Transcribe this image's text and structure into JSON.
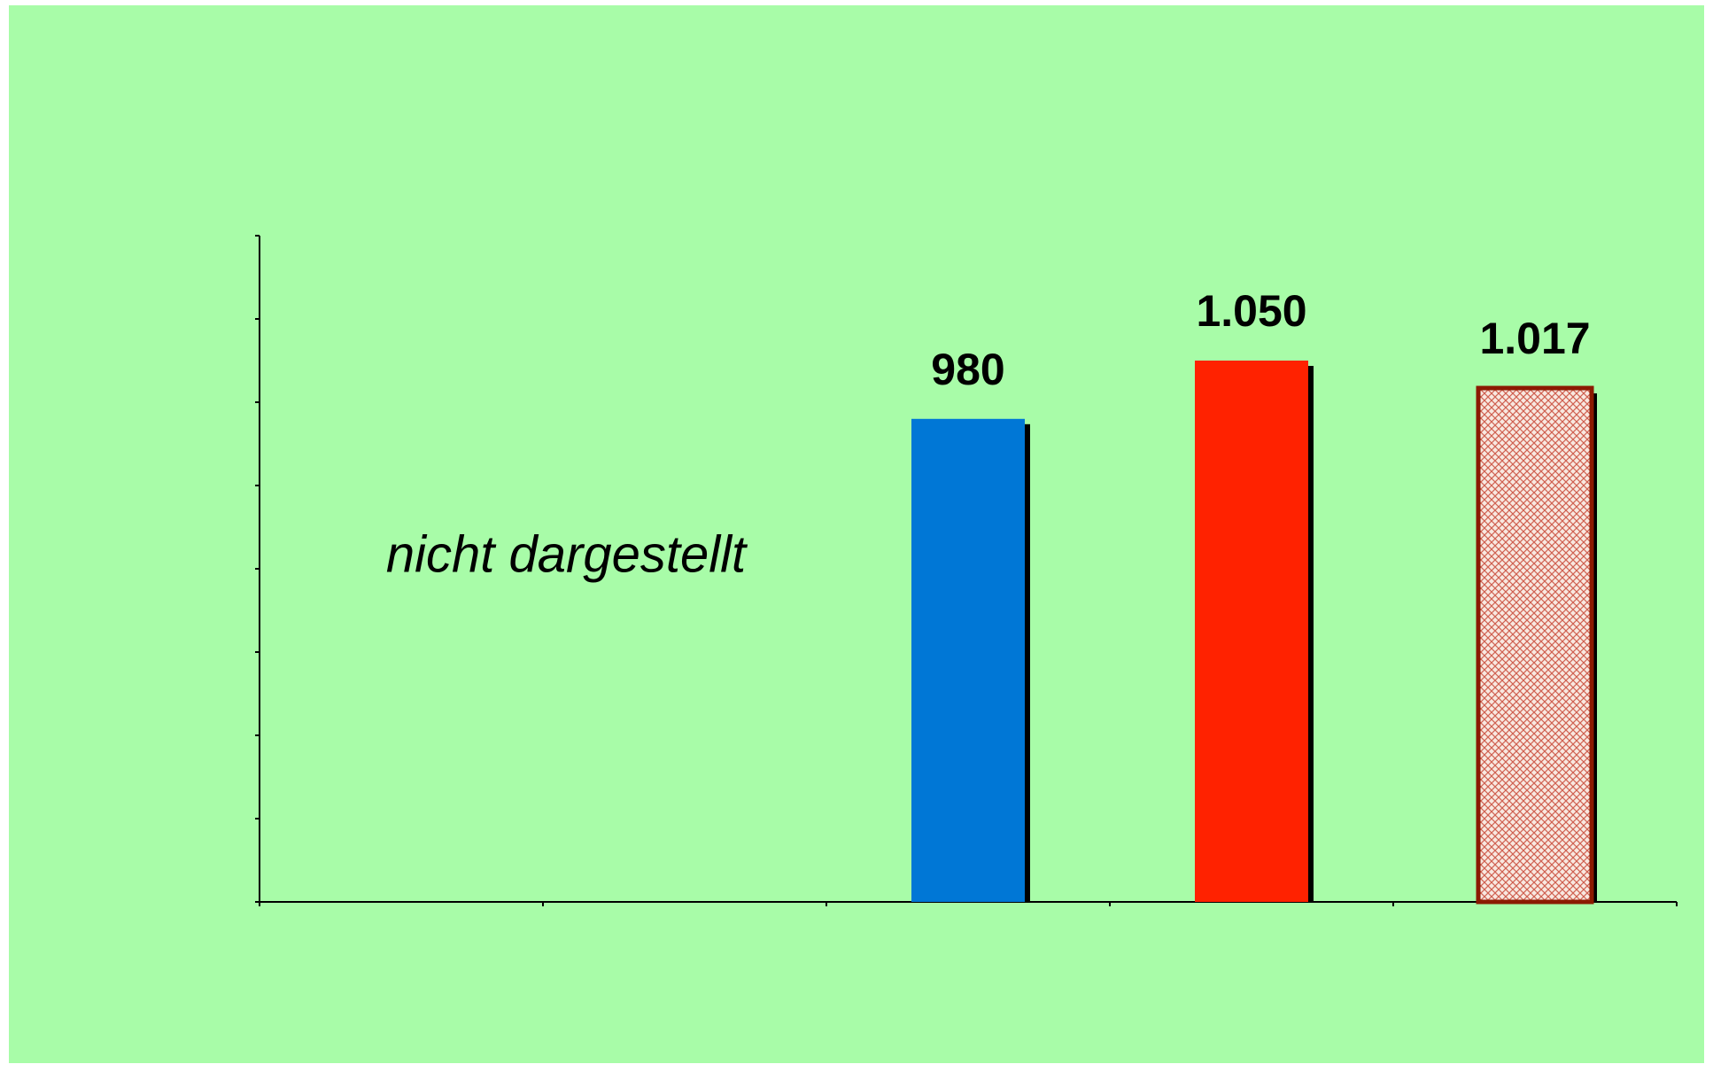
{
  "chart_data": {
    "type": "bar",
    "categories": [
      null,
      null,
      null,
      null,
      null
    ],
    "values": [
      null,
      null,
      980,
      1050,
      1017
    ],
    "value_labels": [
      null,
      null,
      "980",
      "1.050",
      "1.017"
    ],
    "colors": [
      null,
      null,
      "#0077d6",
      "#ff2200",
      "#8b1a00"
    ],
    "fills": [
      null,
      null,
      "solid",
      "solid",
      "hatch"
    ],
    "annotation": "nicht dargestellt",
    "ylim": [
      400,
      1200
    ],
    "yticks": [
      400,
      500,
      600,
      700,
      800,
      900,
      1000,
      1100,
      1200
    ],
    "grid": false
  }
}
